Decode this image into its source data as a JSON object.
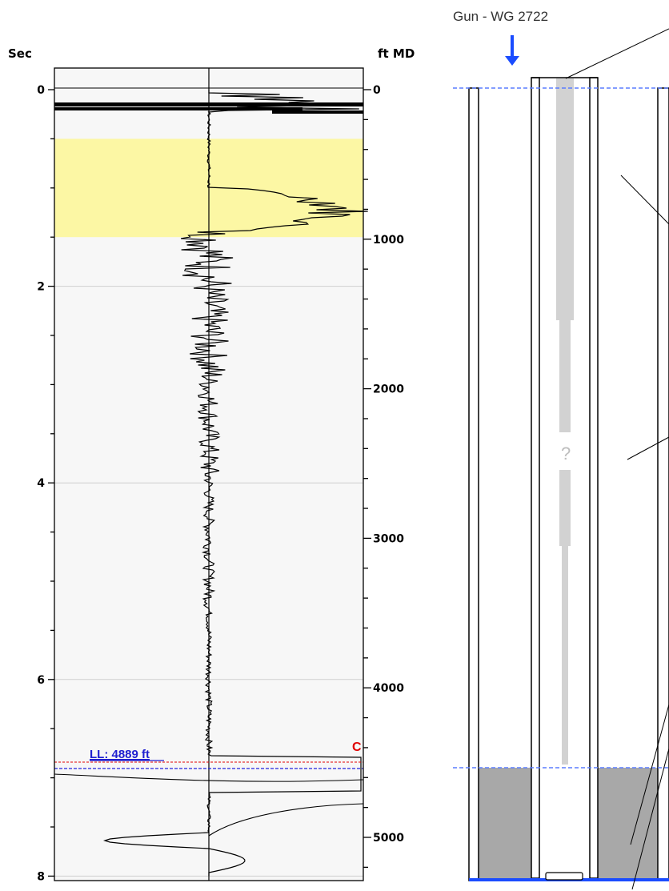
{
  "chart_data": {
    "type": "line",
    "left_axis": {
      "title": "Sec",
      "range": [
        0,
        8.2
      ],
      "ticks": [
        0,
        2,
        4,
        6,
        8
      ],
      "tick_labels": [
        "0",
        "2",
        "4",
        "6",
        "8"
      ]
    },
    "right_axis": {
      "title": "ft MD",
      "range": [
        0,
        5350
      ],
      "ticks": [
        0,
        1000,
        2000,
        3000,
        4000,
        5000
      ],
      "tick_labels": [
        "0",
        "1000",
        "2000",
        "3000",
        "4000",
        "5000"
      ]
    },
    "highlight_band_sec": [
      0.5,
      1.5
    ],
    "highlight_color": "#fcf7a4",
    "liquid_level": {
      "label": "LL: 4889 ft",
      "depth_ft": 4889,
      "color": "#2222dd"
    },
    "c_marker": {
      "label": "C",
      "time_sec": 7.35,
      "color": "#e00000"
    },
    "grid": true,
    "trace_description": "acoustic echo trace"
  },
  "wellbore": {
    "gun_label": "Gun - WG 2722",
    "arrow_color": "#1a4cff",
    "tubing_marker": "?",
    "fluid_color": "#a8a8a8",
    "bottom_color": "#1a4cff"
  }
}
